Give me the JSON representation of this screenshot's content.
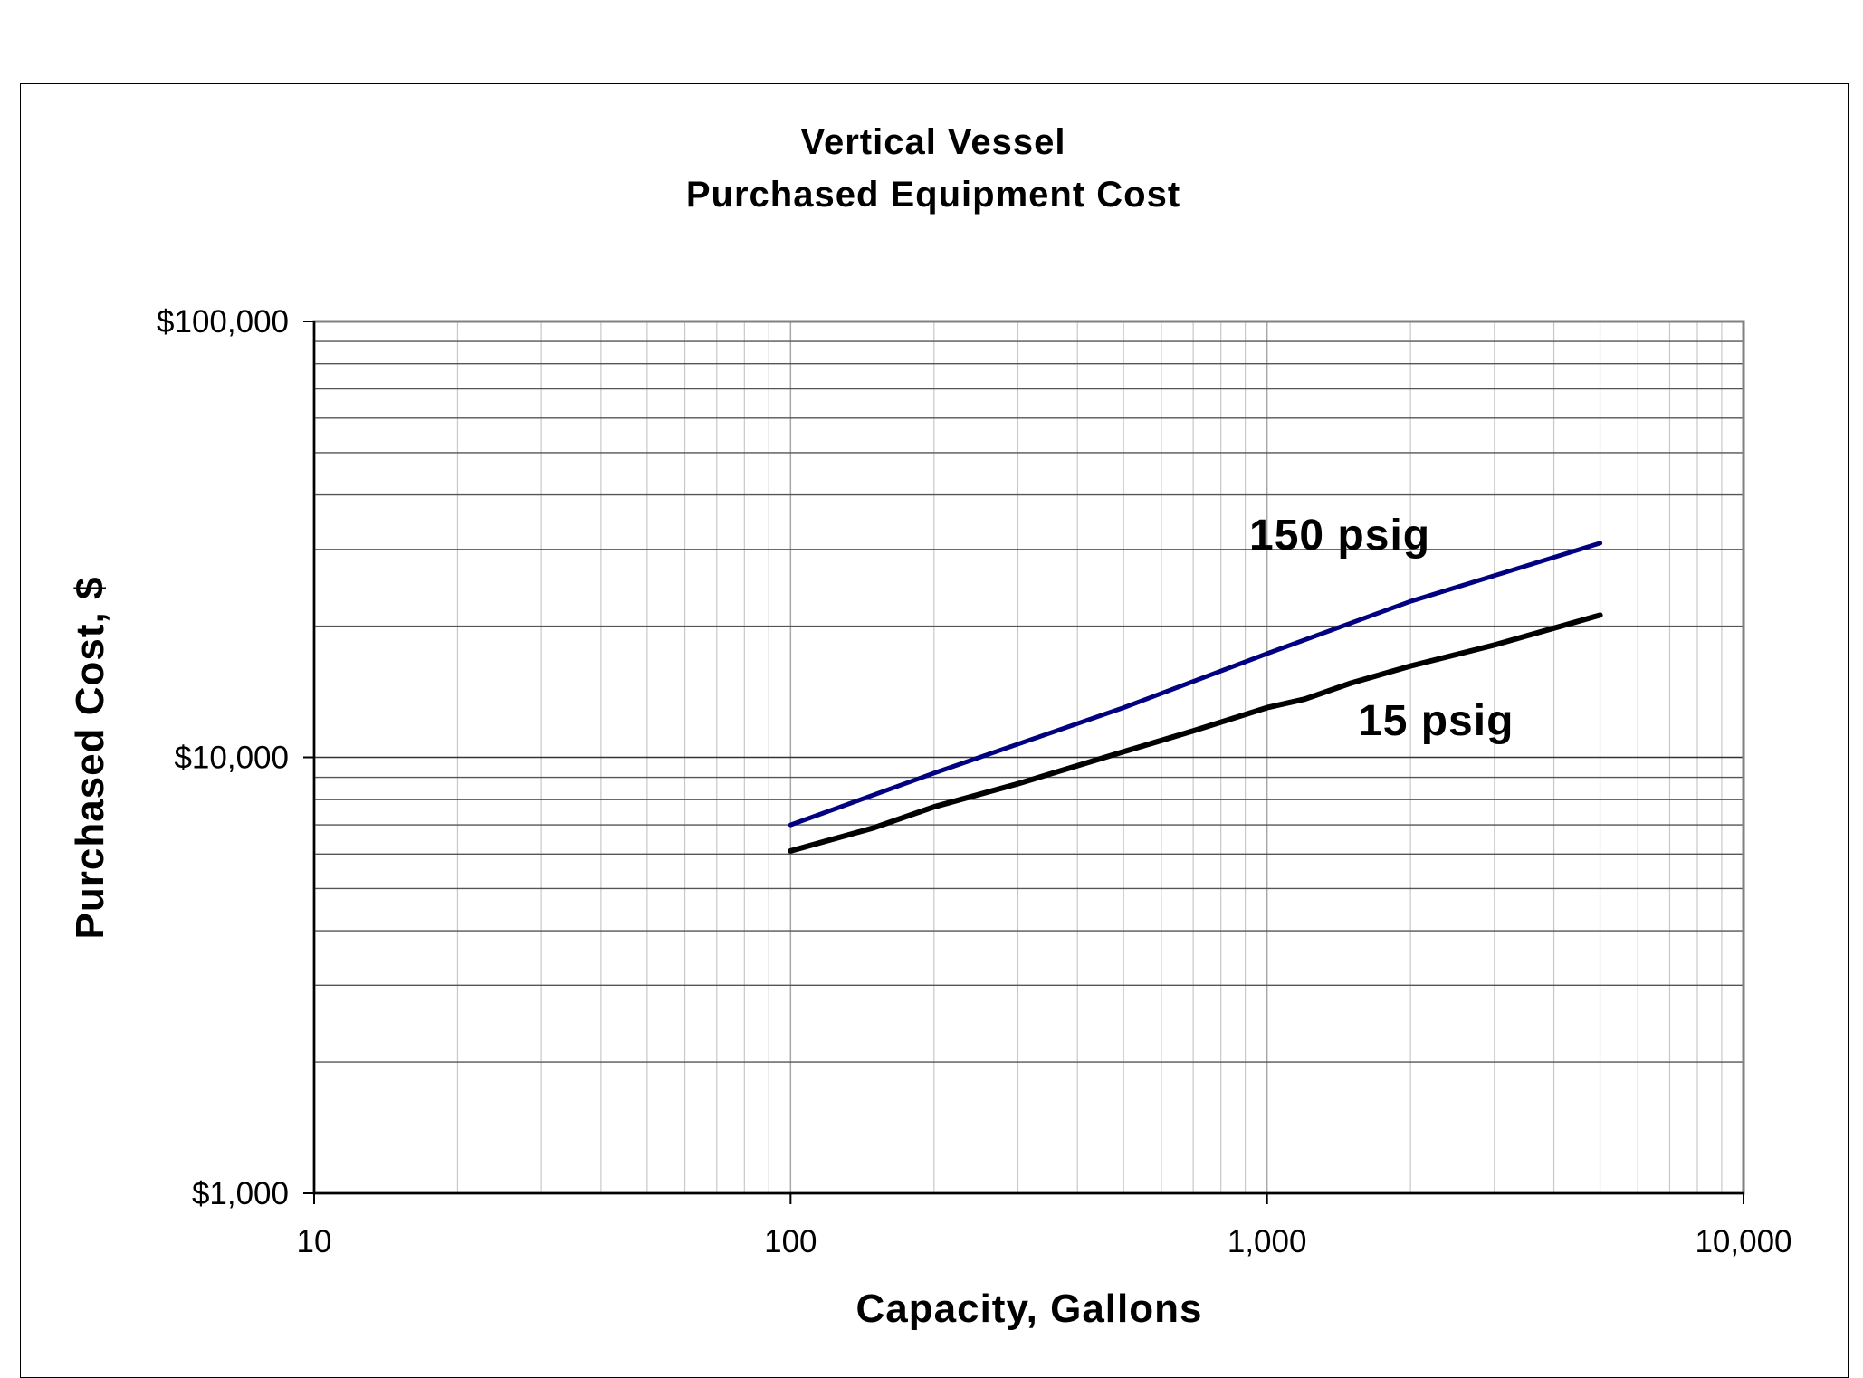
{
  "chart_data": {
    "type": "line",
    "title": [
      "Vertical Vessel",
      "Purchased Equipment Cost"
    ],
    "xlabel": "Capacity, Gallons",
    "ylabel": "Purchased Cost, $",
    "xscale": "log",
    "yscale": "log",
    "xlim": [
      10,
      10000
    ],
    "ylim": [
      1000,
      100000
    ],
    "x_ticks": [
      10,
      100,
      1000,
      10000
    ],
    "x_tick_labels": [
      "10",
      "100",
      "1,000",
      "10,000"
    ],
    "y_ticks": [
      1000,
      10000,
      100000
    ],
    "y_tick_labels": [
      "$1,000",
      "$10,000",
      "$100,000"
    ],
    "grid": true,
    "legend": "none",
    "series": [
      {
        "name": "150 psig",
        "color": "#000080",
        "x": [
          100,
          200,
          500,
          1000,
          2000,
          5000
        ],
        "y": [
          7000,
          9200,
          13000,
          17300,
          22800,
          31000
        ]
      },
      {
        "name": "15 psig",
        "color": "#000000",
        "x": [
          100,
          150,
          200,
          300,
          500,
          700,
          1000,
          1200,
          1500,
          2000,
          3000,
          5000
        ],
        "y": [
          6100,
          6900,
          7700,
          8700,
          10300,
          11500,
          13000,
          13600,
          14800,
          16200,
          18100,
          21200
        ]
      }
    ]
  }
}
